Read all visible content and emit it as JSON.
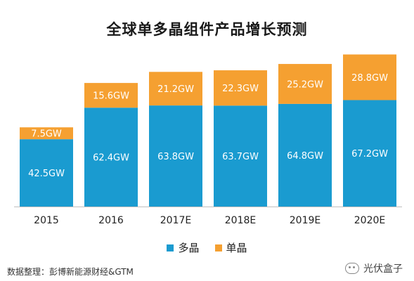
{
  "chart_data": {
    "type": "bar",
    "stacked": true,
    "title": "全球单多晶组件产品增长预测",
    "categories": [
      "2015",
      "2016",
      "2017E",
      "2018E",
      "2019E",
      "2020E"
    ],
    "series": [
      {
        "name": "多晶",
        "color": "#1a9bd0",
        "values": [
          42.5,
          62.4,
          63.8,
          63.7,
          64.8,
          67.2
        ],
        "labels": [
          "42.5GW",
          "62.4GW",
          "63.8GW",
          "63.7GW",
          "64.8GW",
          "67.2GW"
        ]
      },
      {
        "name": "单晶",
        "color": "#f5a031",
        "values": [
          7.5,
          15.6,
          21.2,
          22.3,
          25.2,
          28.8
        ],
        "labels": [
          "7.5GW",
          "15.6GW",
          "21.2GW",
          "22.3GW",
          "25.2GW",
          "28.8GW"
        ]
      }
    ],
    "xlabel": "",
    "ylabel": "",
    "ylim": [
      0,
      100
    ],
    "grid": false,
    "legend_position": "bottom"
  },
  "source": "数据整理：彭博新能源财经&GTM",
  "watermark": "光伏盒子"
}
